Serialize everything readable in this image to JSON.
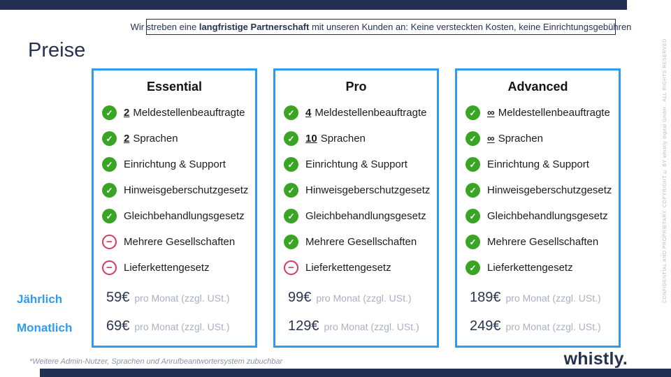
{
  "banner": {
    "pre": "Wir streben eine ",
    "bold": "langfristige Partnerschaft",
    "post": " mit unseren Kunden an: Keine versteckten Kosten, keine Einrichtungsgebühren"
  },
  "page_title": "Preise",
  "icons": {
    "check": "✓",
    "minus": "−"
  },
  "period_labels": {
    "yearly": "Jährlich",
    "monthly": "Monatlich"
  },
  "pricing": {
    "suffix": "pro Monat (zzgl. USt.)"
  },
  "cards": [
    {
      "title": "Essential",
      "features": [
        {
          "value": "2",
          "label": "Meldestellenbeauftragte",
          "included": true
        },
        {
          "value": "2",
          "label": "Sprachen",
          "included": true
        },
        {
          "value": "",
          "label": "Einrichtung & Support",
          "included": true
        },
        {
          "value": "",
          "label": "Hinweisgeberschutzgesetz",
          "included": true
        },
        {
          "value": "",
          "label": "Gleichbehandlungsgesetz",
          "included": true
        },
        {
          "value": "",
          "label": "Mehrere Gesellschaften",
          "included": false
        },
        {
          "value": "",
          "label": "Lieferkettengesetz",
          "included": false
        }
      ],
      "yearly_price": "59€",
      "monthly_price": "69€"
    },
    {
      "title": "Pro",
      "features": [
        {
          "value": "4",
          "label": "Meldestellenbeauftragte",
          "included": true
        },
        {
          "value": "10",
          "label": "Sprachen",
          "included": true
        },
        {
          "value": "",
          "label": "Einrichtung & Support",
          "included": true
        },
        {
          "value": "",
          "label": "Hinweisgeberschutzgesetz",
          "included": true
        },
        {
          "value": "",
          "label": "Gleichbehandlungsgesetz",
          "included": true
        },
        {
          "value": "",
          "label": "Mehrere Gesellschaften",
          "included": true
        },
        {
          "value": "",
          "label": "Lieferkettengesetz",
          "included": false
        }
      ],
      "yearly_price": "99€",
      "monthly_price": "129€"
    },
    {
      "title": "Advanced",
      "features": [
        {
          "value": "∞",
          "label": "Meldestellenbeauftragte",
          "included": true
        },
        {
          "value": "∞",
          "label": "Sprachen",
          "included": true
        },
        {
          "value": "",
          "label": "Einrichtung & Support",
          "included": true
        },
        {
          "value": "",
          "label": "Hinweisgeberschutzgesetz",
          "included": true
        },
        {
          "value": "",
          "label": "Gleichbehandlungsgesetz",
          "included": true
        },
        {
          "value": "",
          "label": "Mehrere Gesellschaften",
          "included": true
        },
        {
          "value": "",
          "label": "Lieferkettengesetz",
          "included": true
        }
      ],
      "yearly_price": "189€",
      "monthly_price": "249€"
    }
  ],
  "footnote": "*Weitere Admin-Nutzer, Sprachen und Anrufbeantwortersystem zubuchbar",
  "logo": "whistly.",
  "copyright": "CONFIDENTIAL AND PROPRIETARY. COPYRIGHT © BY whistly digital GmbH . ALL RIGHTS RESERVED",
  "colors": {
    "navy": "#232f52",
    "accent_blue": "#2e9bf0",
    "check_green": "#3aa524",
    "minus_red": "#d63a5c",
    "price_gray": "#a8b0c0"
  }
}
